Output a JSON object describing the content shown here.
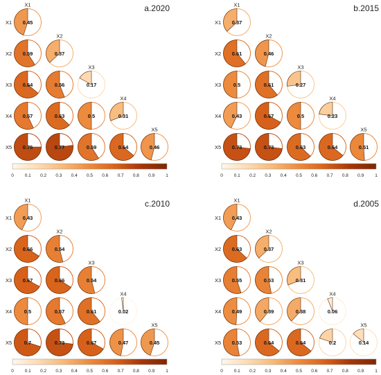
{
  "variables": [
    "X1",
    "X2",
    "X3",
    "X4",
    "X5"
  ],
  "colorbar": {
    "range": [
      0,
      1
    ],
    "ticks": [
      "0",
      "0.1",
      "0.2",
      "0.3",
      "0.4",
      "0.5",
      "0.6",
      "0.7",
      "0.8",
      "0.9",
      "1"
    ],
    "colors": [
      "#fff7ec",
      "#fddbb3",
      "#f7b878",
      "#ec8a3e",
      "#d8621a",
      "#a6360a",
      "#7f2704"
    ]
  },
  "chart_data": [
    {
      "type": "heatmap",
      "title": "a.2020",
      "rows": [
        "X1",
        "X2",
        "X3",
        "X4",
        "X5"
      ],
      "values": [
        [
          0.45
        ],
        [
          0.59,
          0.37
        ],
        [
          0.64,
          0.56,
          0.17
        ],
        [
          0.57,
          0.63,
          0.5,
          0.31
        ],
        [
          0.75,
          0.77,
          0.59,
          0.64,
          0.46
        ]
      ]
    },
    {
      "type": "heatmap",
      "title": "b.2015",
      "rows": [
        "X1",
        "X2",
        "X3",
        "X4",
        "X5"
      ],
      "values": [
        [
          0.37
        ],
        [
          0.61,
          0.46
        ],
        [
          0.5,
          0.61,
          0.27
        ],
        [
          0.43,
          0.67,
          0.5,
          0.23
        ],
        [
          0.73,
          0.73,
          0.63,
          0.64,
          0.51
        ]
      ]
    },
    {
      "type": "heatmap",
      "title": "c.2010",
      "rows": [
        "X1",
        "X2",
        "X3",
        "X4",
        "X5"
      ],
      "values": [
        [
          0.43
        ],
        [
          0.66,
          0.54
        ],
        [
          0.67,
          0.66,
          0.54
        ],
        [
          0.5,
          0.57,
          0.61,
          0.02
        ],
        [
          0.7,
          0.73,
          0.67,
          0.47,
          0.45
        ]
      ]
    },
    {
      "type": "heatmap",
      "title": "d.2005",
      "rows": [
        "X1",
        "X2",
        "X3",
        "X4",
        "X5"
      ],
      "values": [
        [
          0.43
        ],
        [
          0.63,
          0.37
        ],
        [
          0.55,
          0.53,
          0.31
        ],
        [
          0.49,
          0.39,
          0.38,
          0.06
        ],
        [
          0.53,
          0.64,
          0.64,
          0.2,
          0.14
        ]
      ]
    }
  ]
}
